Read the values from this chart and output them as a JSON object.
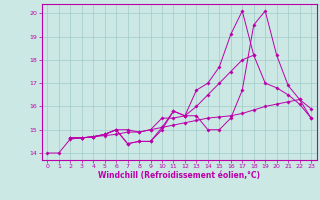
{
  "xlabel": "Windchill (Refroidissement éolien,°C)",
  "background_color": "#cbe8e4",
  "grid_color": "#a0ccc8",
  "line_color": "#bb00aa",
  "xlim": [
    -0.5,
    23.5
  ],
  "ylim": [
    13.7,
    20.4
  ],
  "xticks": [
    0,
    1,
    2,
    3,
    4,
    5,
    6,
    7,
    8,
    9,
    10,
    11,
    12,
    13,
    14,
    15,
    16,
    17,
    18,
    19,
    20,
    21,
    22,
    23
  ],
  "yticks": [
    14,
    15,
    16,
    17,
    18,
    19,
    20
  ],
  "lines": [
    {
      "x": [
        0,
        1,
        2,
        3,
        4,
        5,
        6,
        7,
        8,
        9,
        10,
        11,
        12,
        13,
        14,
        15,
        16,
        17,
        18,
        19,
        20,
        21,
        22,
        23
      ],
      "y": [
        14,
        14,
        14.6,
        14.65,
        14.7,
        14.75,
        14.8,
        14.9,
        14.9,
        15.0,
        15.1,
        15.2,
        15.3,
        15.4,
        15.5,
        15.55,
        15.6,
        15.7,
        15.85,
        16.0,
        16.1,
        16.2,
        16.3,
        15.5
      ]
    },
    {
      "x": [
        2,
        3,
        4,
        5,
        6,
        7,
        8,
        9,
        10,
        11,
        12,
        13,
        14,
        15,
        16,
        17,
        18,
        19,
        20,
        21,
        22,
        23
      ],
      "y": [
        14.65,
        14.65,
        14.7,
        14.8,
        15.0,
        15.0,
        14.9,
        15.0,
        15.5,
        15.5,
        15.6,
        16.0,
        16.5,
        17.0,
        17.5,
        18.0,
        18.2,
        17.0,
        16.8,
        16.5,
        16.1,
        15.5
      ]
    },
    {
      "x": [
        2,
        3,
        4,
        5,
        6,
        7,
        8,
        9,
        10,
        11,
        12,
        13,
        14,
        15,
        16,
        17,
        18,
        19,
        20,
        21,
        22,
        23
      ],
      "y": [
        14.65,
        14.65,
        14.7,
        14.8,
        15.0,
        14.4,
        14.5,
        14.5,
        15.1,
        15.8,
        15.6,
        15.6,
        15.0,
        15.0,
        15.5,
        16.7,
        19.5,
        20.1,
        18.2,
        16.9,
        16.3,
        15.9
      ]
    },
    {
      "x": [
        2,
        3,
        4,
        5,
        6,
        7,
        8,
        9,
        10,
        11,
        12,
        13,
        14,
        15,
        16,
        17,
        18
      ],
      "y": [
        14.65,
        14.65,
        14.7,
        14.8,
        15.0,
        14.4,
        14.5,
        14.5,
        15.0,
        15.8,
        15.6,
        16.7,
        17.0,
        17.7,
        19.1,
        20.1,
        18.2
      ]
    }
  ]
}
